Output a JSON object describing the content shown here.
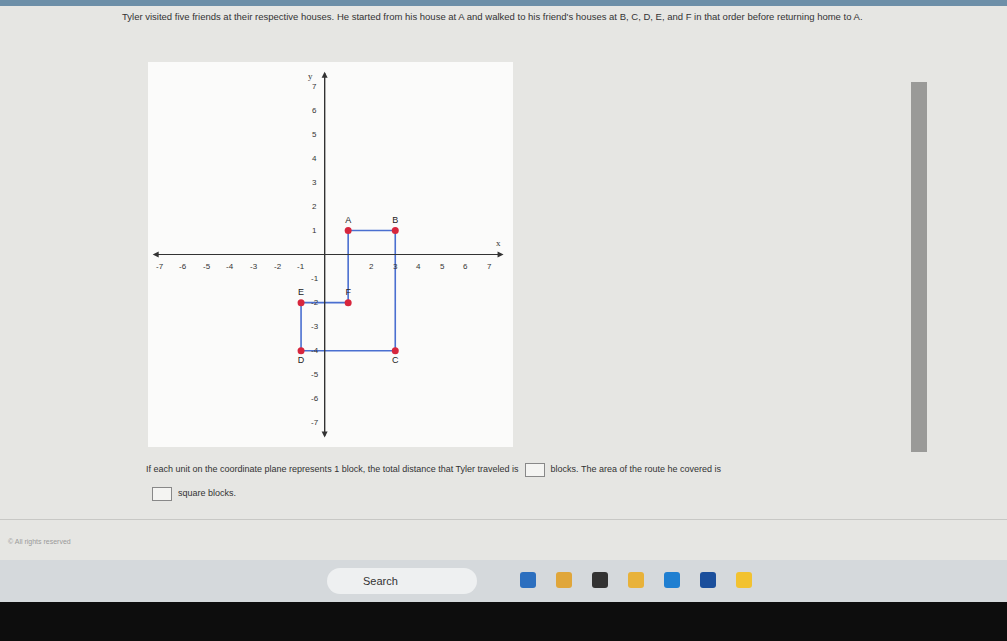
{
  "question": "Tyler visited five friends at their respective houses. He started from his house at A and walked to his friend's houses at B, C, D, E, and F in that order before returning home to A.",
  "chart_data": {
    "type": "scatter",
    "x": [
      1,
      3,
      3,
      -1,
      -1,
      1
    ],
    "values": [
      1,
      1,
      -4,
      -4,
      -2,
      -2
    ],
    "labels": [
      "A",
      "B",
      "C",
      "D",
      "E",
      "F"
    ],
    "x_label": "x",
    "y_label": "y",
    "xlim": [
      -7.5,
      8
    ],
    "ylim": [
      -8,
      8
    ],
    "xticks": [
      -7,
      -6,
      -5,
      -4,
      -3,
      -2,
      -1,
      2,
      3,
      4,
      5,
      6,
      7
    ],
    "yticks": [
      -7,
      -6,
      -5,
      -4,
      -3,
      -2,
      -1,
      1,
      2,
      3,
      4,
      5,
      6,
      7
    ],
    "grid": false,
    "color": "#d7263d",
    "line_color": "#4a6fd0",
    "marker": "circle"
  },
  "prompt": {
    "part1": "If each unit on the coordinate plane represents 1 block, the total distance that Tyler traveled is",
    "part2": "blocks. The area of the route he covered is",
    "part3": "square blocks."
  },
  "footer": "© All rights reserved",
  "taskbar": {
    "search": "Search"
  }
}
